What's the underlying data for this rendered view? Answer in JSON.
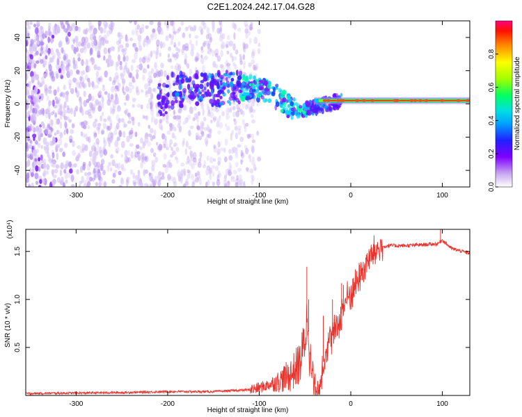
{
  "title": "C2E1.2024.242.17.04.G28",
  "chart_data": [
    {
      "type": "heatmap",
      "xlabel": "Height of straight line (km)",
      "ylabel": "Frequency (Hz)",
      "xlim": [
        -355,
        130
      ],
      "ylim": [
        -50,
        50
      ],
      "xticks": [
        -300,
        -200,
        -100,
        0,
        100
      ],
      "yticks": [
        -40,
        -20,
        0,
        20,
        40
      ],
      "colorbar": {
        "label": "Normalized spectral amplitude",
        "ticks": [
          0.0,
          0.2,
          0.4,
          0.6,
          0.8
        ],
        "range": [
          0,
          1
        ],
        "colors": [
          "#ffffff",
          "#c8a8f0",
          "#8000ff",
          "#3000ff",
          "#0060ff",
          "#00d0ff",
          "#00ff80",
          "#80ff00",
          "#ffff00",
          "#ff8000",
          "#ff0000",
          "#ff0080"
        ]
      },
      "features": {
        "noise_region_x": [
          -355,
          -120
        ],
        "descending_trace": [
          [
            -200,
            8
          ],
          [
            -150,
            9
          ],
          [
            -110,
            10
          ],
          [
            -90,
            8
          ],
          [
            -75,
            2
          ],
          [
            -60,
            -4
          ],
          [
            -50,
            -3
          ],
          [
            -40,
            -2
          ],
          [
            -20,
            1
          ],
          [
            0,
            2
          ]
        ],
        "carrier": {
          "x": [
            -40,
            130
          ],
          "freq": 2
        }
      }
    },
    {
      "type": "line",
      "xlabel": "Height of straight line (km)",
      "ylabel": "SNR (10 * v/v)",
      "multiplier": "(x10⁴)",
      "xlim": [
        -355,
        130
      ],
      "ylim": [
        0,
        1.73
      ],
      "xticks": [
        -300,
        -200,
        -100,
        0,
        100
      ],
      "yticks": [
        0.5,
        1.0,
        1.5
      ],
      "ytick_labels": [
        "0.5",
        "1.0",
        "1.5"
      ],
      "color": "#e8322c",
      "envelope": [
        [
          -355,
          0.02
        ],
        [
          -250,
          0.03
        ],
        [
          -200,
          0.04
        ],
        [
          -150,
          0.04
        ],
        [
          -110,
          0.06
        ],
        [
          -100,
          0.08
        ],
        [
          -80,
          0.14
        ],
        [
          -65,
          0.22
        ],
        [
          -55,
          0.35
        ],
        [
          -50,
          0.6
        ],
        [
          -47,
          0.85
        ],
        [
          -44,
          0.3
        ],
        [
          -40,
          0.08
        ],
        [
          -35,
          0.05
        ],
        [
          -30,
          0.35
        ],
        [
          -25,
          0.55
        ],
        [
          -15,
          0.7
        ],
        [
          -10,
          0.85
        ],
        [
          -5,
          1.0
        ],
        [
          0,
          1.05
        ],
        [
          5,
          1.15
        ],
        [
          10,
          1.25
        ],
        [
          20,
          1.42
        ],
        [
          30,
          1.53
        ],
        [
          40,
          1.56
        ],
        [
          60,
          1.56
        ],
        [
          80,
          1.57
        ],
        [
          95,
          1.58
        ],
        [
          100,
          1.62
        ],
        [
          110,
          1.53
        ],
        [
          130,
          1.48
        ]
      ],
      "spikes": [
        [
          -48,
          1.34
        ],
        [
          -46,
          1.0
        ],
        [
          -30,
          0.83
        ],
        [
          -20,
          1.0
        ],
        [
          -10,
          1.17
        ],
        [
          -8,
          1.15
        ],
        [
          98,
          1.73
        ]
      ]
    }
  ]
}
